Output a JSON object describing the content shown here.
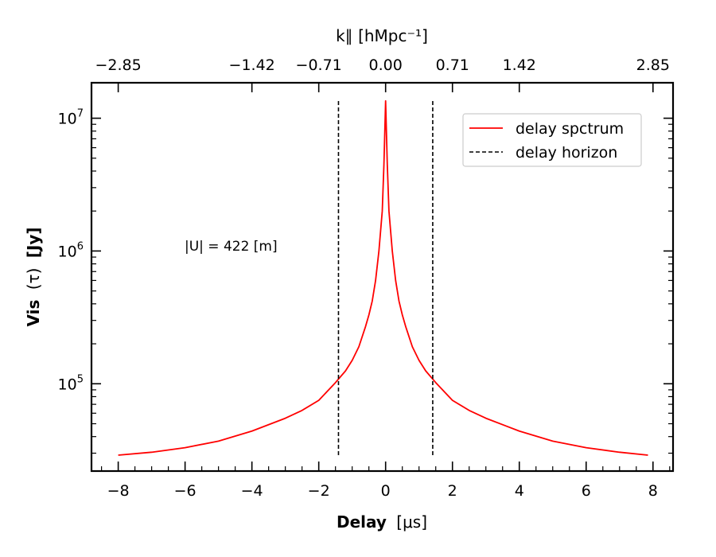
{
  "chart_data": {
    "type": "line",
    "xlabel_bold": "Delay",
    "xlabel_unit": "[μs]",
    "ylabel_bold": "Vis",
    "ylabel_mid": "(τ)",
    "ylabel_unit": "[Jy]",
    "top_xlabel": "k∥ [hMpc⁻¹]",
    "annotation": "|U| = 422 [m]",
    "xlim": [
      -8.8,
      8.6
    ],
    "ylim": [
      22000,
      18500000
    ],
    "yscale": "log",
    "x_ticks": [
      -8,
      -6,
      -4,
      -2,
      0,
      2,
      4,
      6,
      8
    ],
    "x_tick_labels": [
      "−8",
      "−6",
      "−4",
      "−2",
      "0",
      "2",
      "4",
      "6",
      "8"
    ],
    "y_ticks": [
      100000,
      1000000,
      10000000
    ],
    "y_tick_bases": [
      "10",
      "10",
      "10"
    ],
    "y_tick_exps": [
      "5",
      "6",
      "7"
    ],
    "top_x_ticks": [
      -8,
      -4,
      -2,
      0,
      2,
      4,
      8
    ],
    "top_x_tick_labels": [
      "−2.85",
      "−1.42",
      "−0.71",
      "0.00",
      "0.71",
      "1.42",
      "2.85"
    ],
    "legend_position": "upper right",
    "series": [
      {
        "name": "delay spctrum",
        "color": "#ff0000",
        "style": "solid",
        "x": [
          -8,
          -7,
          -6,
          -5,
          -4,
          -3,
          -2.5,
          -2,
          -1.5,
          -1.2,
          -1,
          -0.8,
          -0.6,
          -0.5,
          -0.4,
          -0.3,
          -0.2,
          -0.1,
          -0.05,
          0,
          0.05,
          0.1,
          0.2,
          0.3,
          0.4,
          0.5,
          0.6,
          0.8,
          1,
          1.2,
          1.5,
          2,
          2.5,
          3,
          4,
          5,
          6,
          7,
          7.85
        ],
        "y": [
          29000,
          30500,
          33000,
          37000,
          44000,
          55000,
          63000,
          75000,
          102000,
          125000,
          150000,
          190000,
          270000,
          330000,
          420000,
          600000,
          1000000,
          2000000,
          4500000,
          13500000,
          4500000,
          2000000,
          1000000,
          600000,
          420000,
          330000,
          270000,
          190000,
          150000,
          125000,
          102000,
          75000,
          63000,
          55000,
          44000,
          37000,
          33000,
          30500,
          29000
        ]
      },
      {
        "name": "delay horizon",
        "color": "#000000",
        "style": "dashed",
        "lines": [
          {
            "x": -1.41,
            "y": [
              29000,
              13500000
            ]
          },
          {
            "x": 1.41,
            "y": [
              29000,
              13500000
            ]
          }
        ]
      }
    ]
  }
}
